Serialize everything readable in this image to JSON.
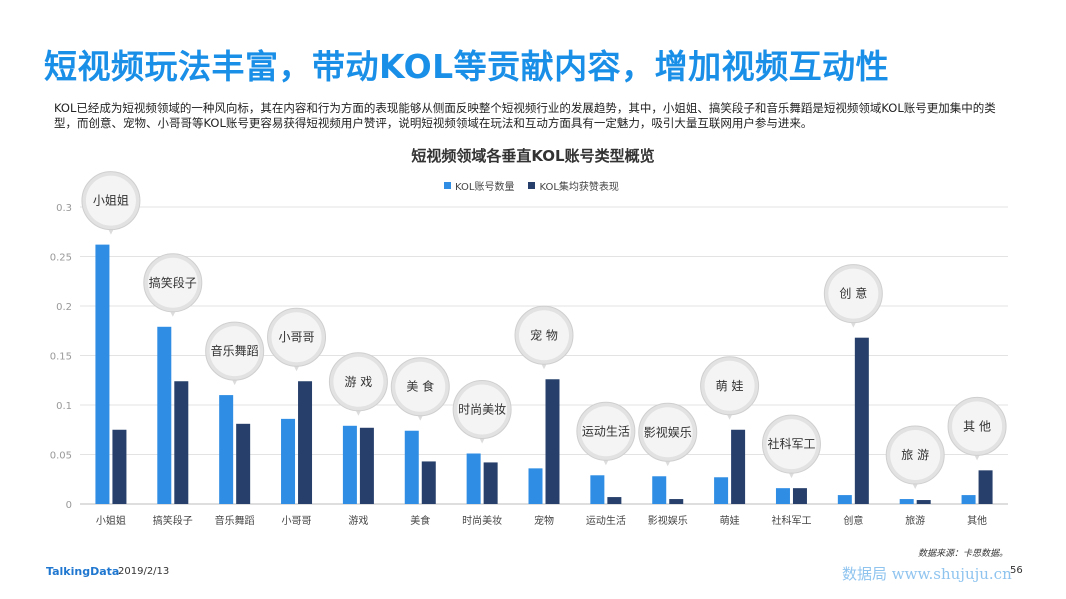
{
  "page": {
    "title": "短视频玩法丰富，带动KOL等贡献内容，增加视频互动性",
    "description": "KOL已经成为短视频领域的一种风向标，其在内容和行为方面的表现能够从侧面反映整个短视频行业的发展趋势，其中，小姐姐、搞笑段子和音乐舞蹈是短视频领域KOL账号更加集中的类型，而创意、宠物、小哥哥等KOL账号更容易获得短视频用户赞评，说明短视频领域在玩法和互动方面具有一定魅力，吸引大量互联网用户参与进来。",
    "source": "数据来源：卡思数据。",
    "brand": "TalkingData",
    "date": "2019/2/13",
    "page_number": "56",
    "watermark": "数据局 www.shujuju.cn"
  },
  "chart_data": {
    "type": "bar",
    "title": "短视频领域各垂直KOL账号类型概览",
    "categories": [
      "小姐姐",
      "搞笑段子",
      "音乐舞蹈",
      "小哥哥",
      "游戏",
      "美食",
      "时尚美妆",
      "宠物",
      "运动生活",
      "影视娱乐",
      "萌娃",
      "社科军工",
      "创意",
      "旅游",
      "其他"
    ],
    "bubble_labels": [
      "小姐姐",
      "搞笑段子",
      "音乐舞蹈",
      "小哥哥",
      "游 戏",
      "美 食",
      "时尚美妆",
      "宠 物",
      "运动生活",
      "影视娱乐",
      "萌 娃",
      "社科军工",
      "创 意",
      "旅 游",
      "其 他"
    ],
    "series": [
      {
        "name": "KOL账号数量",
        "color": "#2f8de4",
        "values": [
          0.262,
          0.179,
          0.11,
          0.086,
          0.079,
          0.074,
          0.051,
          0.036,
          0.029,
          0.028,
          0.027,
          0.016,
          0.009,
          0.005,
          0.009
        ]
      },
      {
        "name": "KOL集均获赞表现",
        "color": "#27406b",
        "values": [
          0.075,
          0.124,
          0.081,
          0.124,
          0.077,
          0.043,
          0.042,
          0.126,
          0.007,
          0.005,
          0.075,
          0.016,
          0.168,
          0.004,
          0.034
        ]
      }
    ],
    "ylim": [
      0,
      0.3
    ],
    "yticks": [
      "0",
      "0.05",
      "0.1",
      "0.15",
      "0.2",
      "0.25",
      "0.3"
    ],
    "grid": true,
    "legend_position": "top-center"
  }
}
